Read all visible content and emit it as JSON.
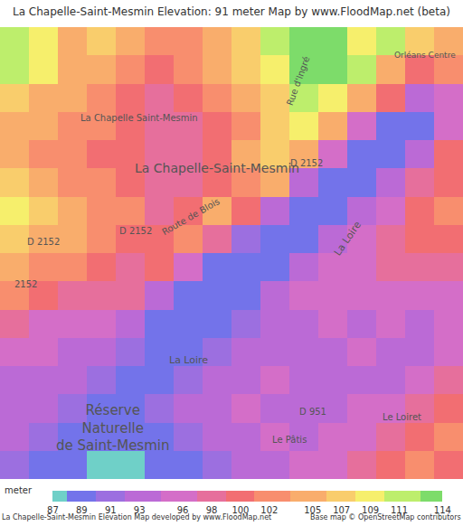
{
  "chart_data": {
    "type": "heatmap",
    "title": "La Chapelle-Saint-Mesmin Elevation: 91 meter Map by www.FloodMap.net (beta)",
    "footer": "La Chapelle-Saint-Mesmin Elevation Map developed by www.FloodMap.net",
    "credit": "Base map © OpenStreetMap contributors",
    "tick_labels": false,
    "cells": [
      [
        111,
        109,
        105,
        107,
        105,
        102,
        102,
        105,
        107,
        111,
        114,
        114,
        109,
        111,
        107,
        105
      ],
      [
        111,
        109,
        105,
        105,
        102,
        100,
        102,
        105,
        107,
        109,
        114,
        114,
        111,
        105,
        100,
        102
      ],
      [
        107,
        105,
        105,
        102,
        100,
        98,
        100,
        102,
        105,
        107,
        111,
        109,
        105,
        100,
        93,
        96
      ],
      [
        105,
        105,
        102,
        102,
        100,
        98,
        98,
        100,
        102,
        107,
        109,
        105,
        96,
        89,
        89,
        96
      ],
      [
        105,
        102,
        102,
        100,
        100,
        98,
        98,
        100,
        105,
        107,
        105,
        96,
        89,
        89,
        93,
        100
      ],
      [
        107,
        105,
        102,
        102,
        100,
        98,
        98,
        100,
        102,
        105,
        93,
        89,
        89,
        93,
        98,
        100
      ],
      [
        109,
        107,
        105,
        102,
        102,
        98,
        100,
        105,
        100,
        93,
        89,
        89,
        93,
        96,
        100,
        102
      ],
      [
        107,
        105,
        105,
        102,
        100,
        100,
        102,
        98,
        91,
        89,
        89,
        93,
        96,
        98,
        100,
        100
      ],
      [
        105,
        102,
        102,
        100,
        98,
        100,
        96,
        89,
        89,
        89,
        93,
        96,
        96,
        98,
        98,
        98
      ],
      [
        102,
        100,
        98,
        98,
        98,
        93,
        89,
        89,
        89,
        93,
        96,
        96,
        96,
        96,
        96,
        96
      ],
      [
        98,
        96,
        96,
        96,
        93,
        89,
        89,
        89,
        91,
        93,
        93,
        96,
        93,
        96,
        93,
        96
      ],
      [
        96,
        96,
        93,
        93,
        91,
        89,
        89,
        91,
        93,
        93,
        93,
        93,
        96,
        93,
        93,
        96
      ],
      [
        93,
        93,
        93,
        91,
        89,
        89,
        91,
        93,
        93,
        96,
        93,
        93,
        93,
        93,
        96,
        98
      ],
      [
        93,
        93,
        91,
        89,
        89,
        91,
        93,
        93,
        96,
        93,
        93,
        93,
        96,
        96,
        98,
        100
      ],
      [
        93,
        91,
        89,
        89,
        89,
        89,
        91,
        93,
        93,
        96,
        93,
        96,
        96,
        98,
        100,
        102
      ],
      [
        91,
        89,
        89,
        87,
        87,
        89,
        89,
        91,
        93,
        93,
        96,
        96,
        98,
        100,
        102,
        100
      ]
    ],
    "colorbar": {
      "title": "meter",
      "range": [
        87,
        114
      ],
      "ticks": [
        87,
        89,
        91,
        93,
        96,
        98,
        100,
        102,
        105,
        107,
        109,
        111,
        114
      ],
      "colors": [
        "#6fd0c8",
        "#7373ea",
        "#9c6fe0",
        "#bb6ad6",
        "#d46ec8",
        "#e66f9c",
        "#f26e72",
        "#f88e6e",
        "#f9ad6c",
        "#f9cd6c",
        "#f6ef6c",
        "#bdee6c",
        "#7ddc6a"
      ]
    },
    "labels": [
      {
        "text": "La Chapelle Saint-Mesmin"
      },
      {
        "text": "La Chapelle-Saint-Mesmin"
      },
      {
        "text": "Route de Blois"
      },
      {
        "text": "D 2152"
      },
      {
        "text": "D 2152"
      },
      {
        "text": "D 2152"
      },
      {
        "text": "2152"
      },
      {
        "text": "Rue d'Ingré"
      },
      {
        "text": "Orléans Centre"
      },
      {
        "text": "La Loire"
      },
      {
        "text": "La Loire"
      },
      {
        "lines": [
          "Réserve",
          "Naturelle",
          "de Saint-Mesmin"
        ]
      },
      {
        "text": "D 951"
      },
      {
        "text": "Le Pâtis"
      },
      {
        "text": "Le Loiret"
      }
    ]
  }
}
